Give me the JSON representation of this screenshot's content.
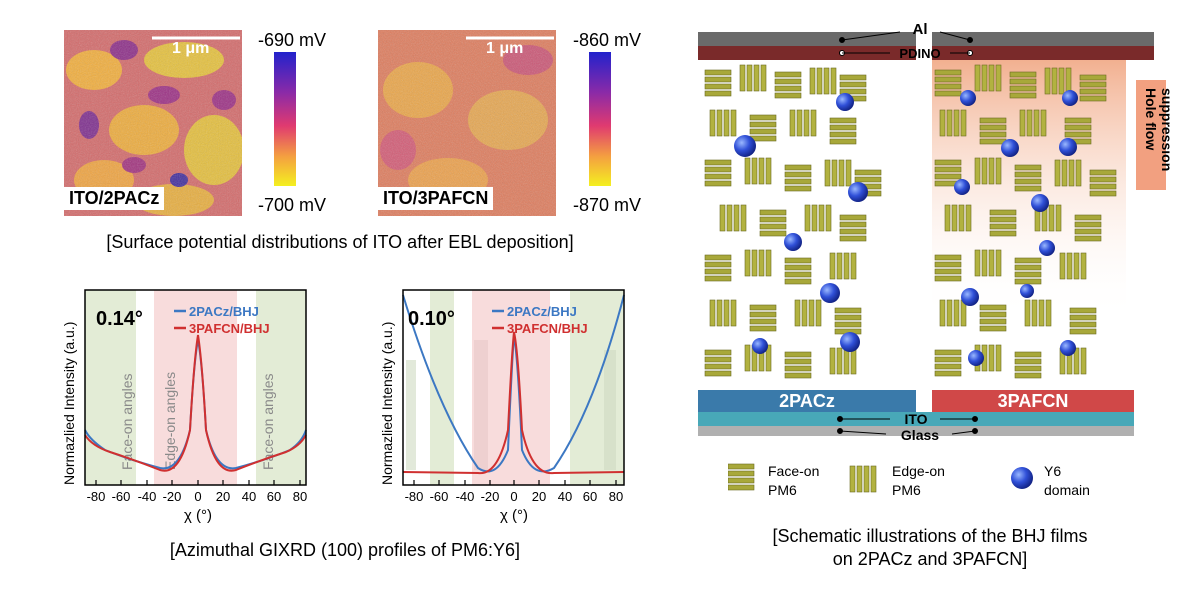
{
  "kpfm": {
    "left": {
      "label": "ITO/2PACz",
      "scale_bar": "1 μm",
      "colorbar_max": "-690 mV",
      "colorbar_min": "-700 mV"
    },
    "right": {
      "label": "ITO/3PAFCN",
      "scale_bar": "1 μm",
      "colorbar_max": "-860 mV",
      "colorbar_min": "-870 mV"
    },
    "caption": "[Surface potential distributions of ITO after EBL deposition]"
  },
  "gixrd": {
    "caption": "[Azimuthal GIXRD (100) profiles of PM6:Y6]",
    "colors": {
      "pacz": "#3c78c3",
      "pafcn": "#d03030",
      "face_band": "#e3ecd6",
      "edge_band": "#f8dcdc"
    },
    "left": {
      "angle": "0.14°",
      "legend": [
        "2PACz/BHJ",
        "3PAFCN/BHJ"
      ],
      "ylabel": "Normazlied Intensity (a.u.)",
      "xlabel": "χ (°)",
      "ticks": [
        "-80",
        "-60",
        "-40",
        "-20",
        "0",
        "20",
        "40",
        "60",
        "80"
      ],
      "region_labels": [
        "Face-on angles",
        "Edge-on angles",
        "Face-on angles"
      ]
    },
    "right": {
      "angle": "0.10°",
      "legend": [
        "2PACz/BHJ",
        "3PAFCN/BHJ"
      ],
      "ylabel": "Normazlied Intensity (a.u.)",
      "xlabel": "χ (°)",
      "ticks": [
        "-80",
        "-60",
        "-40",
        "-20",
        "0",
        "20",
        "40",
        "60",
        "80"
      ]
    }
  },
  "schematic": {
    "layers": [
      "Al",
      "PDINO",
      "ITO",
      "Glass"
    ],
    "substrates": [
      "2PACz",
      "3PAFCN"
    ],
    "hole_flow": [
      "Hole flow",
      "suppression"
    ],
    "legend": [
      {
        "line1": "Face-on",
        "line2": "PM6"
      },
      {
        "line1": "Edge-on",
        "line2": "PM6"
      },
      {
        "line1": "Y6",
        "line2": "domain"
      }
    ],
    "caption_line1": "[Schematic illustrations of the BHJ films",
    "caption_line2": "on 2PACz and 3PAFCN]"
  }
}
